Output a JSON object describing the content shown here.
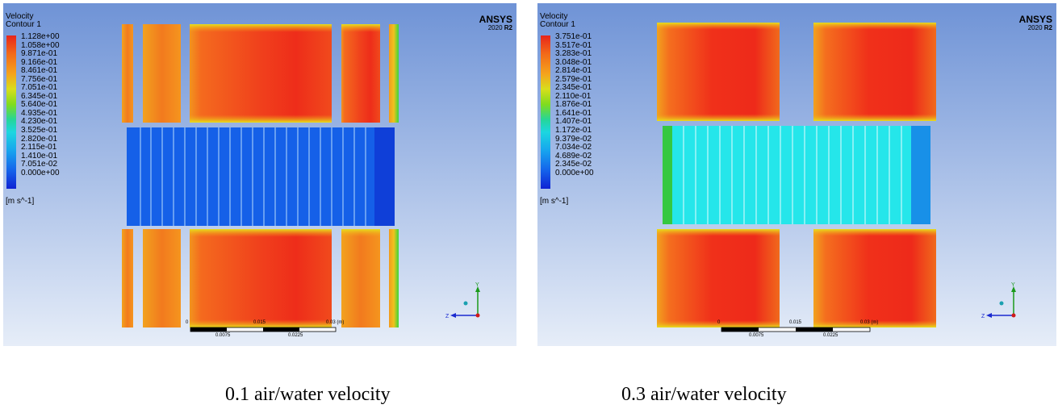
{
  "panels": [
    {
      "legend": {
        "title_line1": "Velocity",
        "title_line2": "Contour 1",
        "labels": [
          "1.128e+00",
          "1.058e+00",
          "9.871e-01",
          "9.166e-01",
          "8.461e-01",
          "7.756e-01",
          "7.051e-01",
          "6.345e-01",
          "5.640e-01",
          "4.935e-01",
          "4.230e-01",
          "3.525e-01",
          "2.820e-01",
          "2.115e-01",
          "1.410e-01",
          "7.051e-02",
          "0.000e+00"
        ],
        "unit": "[m s^-1]"
      },
      "logo": {
        "name": "ANSYS",
        "version_plain": "2020 ",
        "version_bold": "R2"
      },
      "scale_bar": {
        "top_labels": [
          "0",
          "0.015",
          "0.03  (m)"
        ],
        "bottom_labels": [
          "0.0075",
          "0.0225"
        ]
      },
      "axes": {
        "y": "Y",
        "z": "Z"
      },
      "channel_color": "#1560e8",
      "caption": "0.1 air/water velocity"
    },
    {
      "legend": {
        "title_line1": "Velocity",
        "title_line2": "Contour 1",
        "labels": [
          "3.751e-01",
          "3.517e-01",
          "3.283e-01",
          "3.048e-01",
          "2.814e-01",
          "2.579e-01",
          "2.345e-01",
          "2.110e-01",
          "1.876e-01",
          "1.641e-01",
          "1.407e-01",
          "1.172e-01",
          "9.379e-02",
          "7.034e-02",
          "4.689e-02",
          "2.345e-02",
          "0.000e+00"
        ],
        "unit": "[m s^-1]"
      },
      "logo": {
        "name": "ANSYS",
        "version_plain": "2020 ",
        "version_bold": "R2"
      },
      "scale_bar": {
        "top_labels": [
          "0",
          "0.015",
          "0.03  (m)"
        ],
        "bottom_labels": [
          "0.0075",
          "0.0225"
        ]
      },
      "axes": {
        "y": "Y",
        "z": "Z"
      },
      "channel_color": "#25e6ea",
      "caption": "0.3 air/water velocity"
    }
  ]
}
